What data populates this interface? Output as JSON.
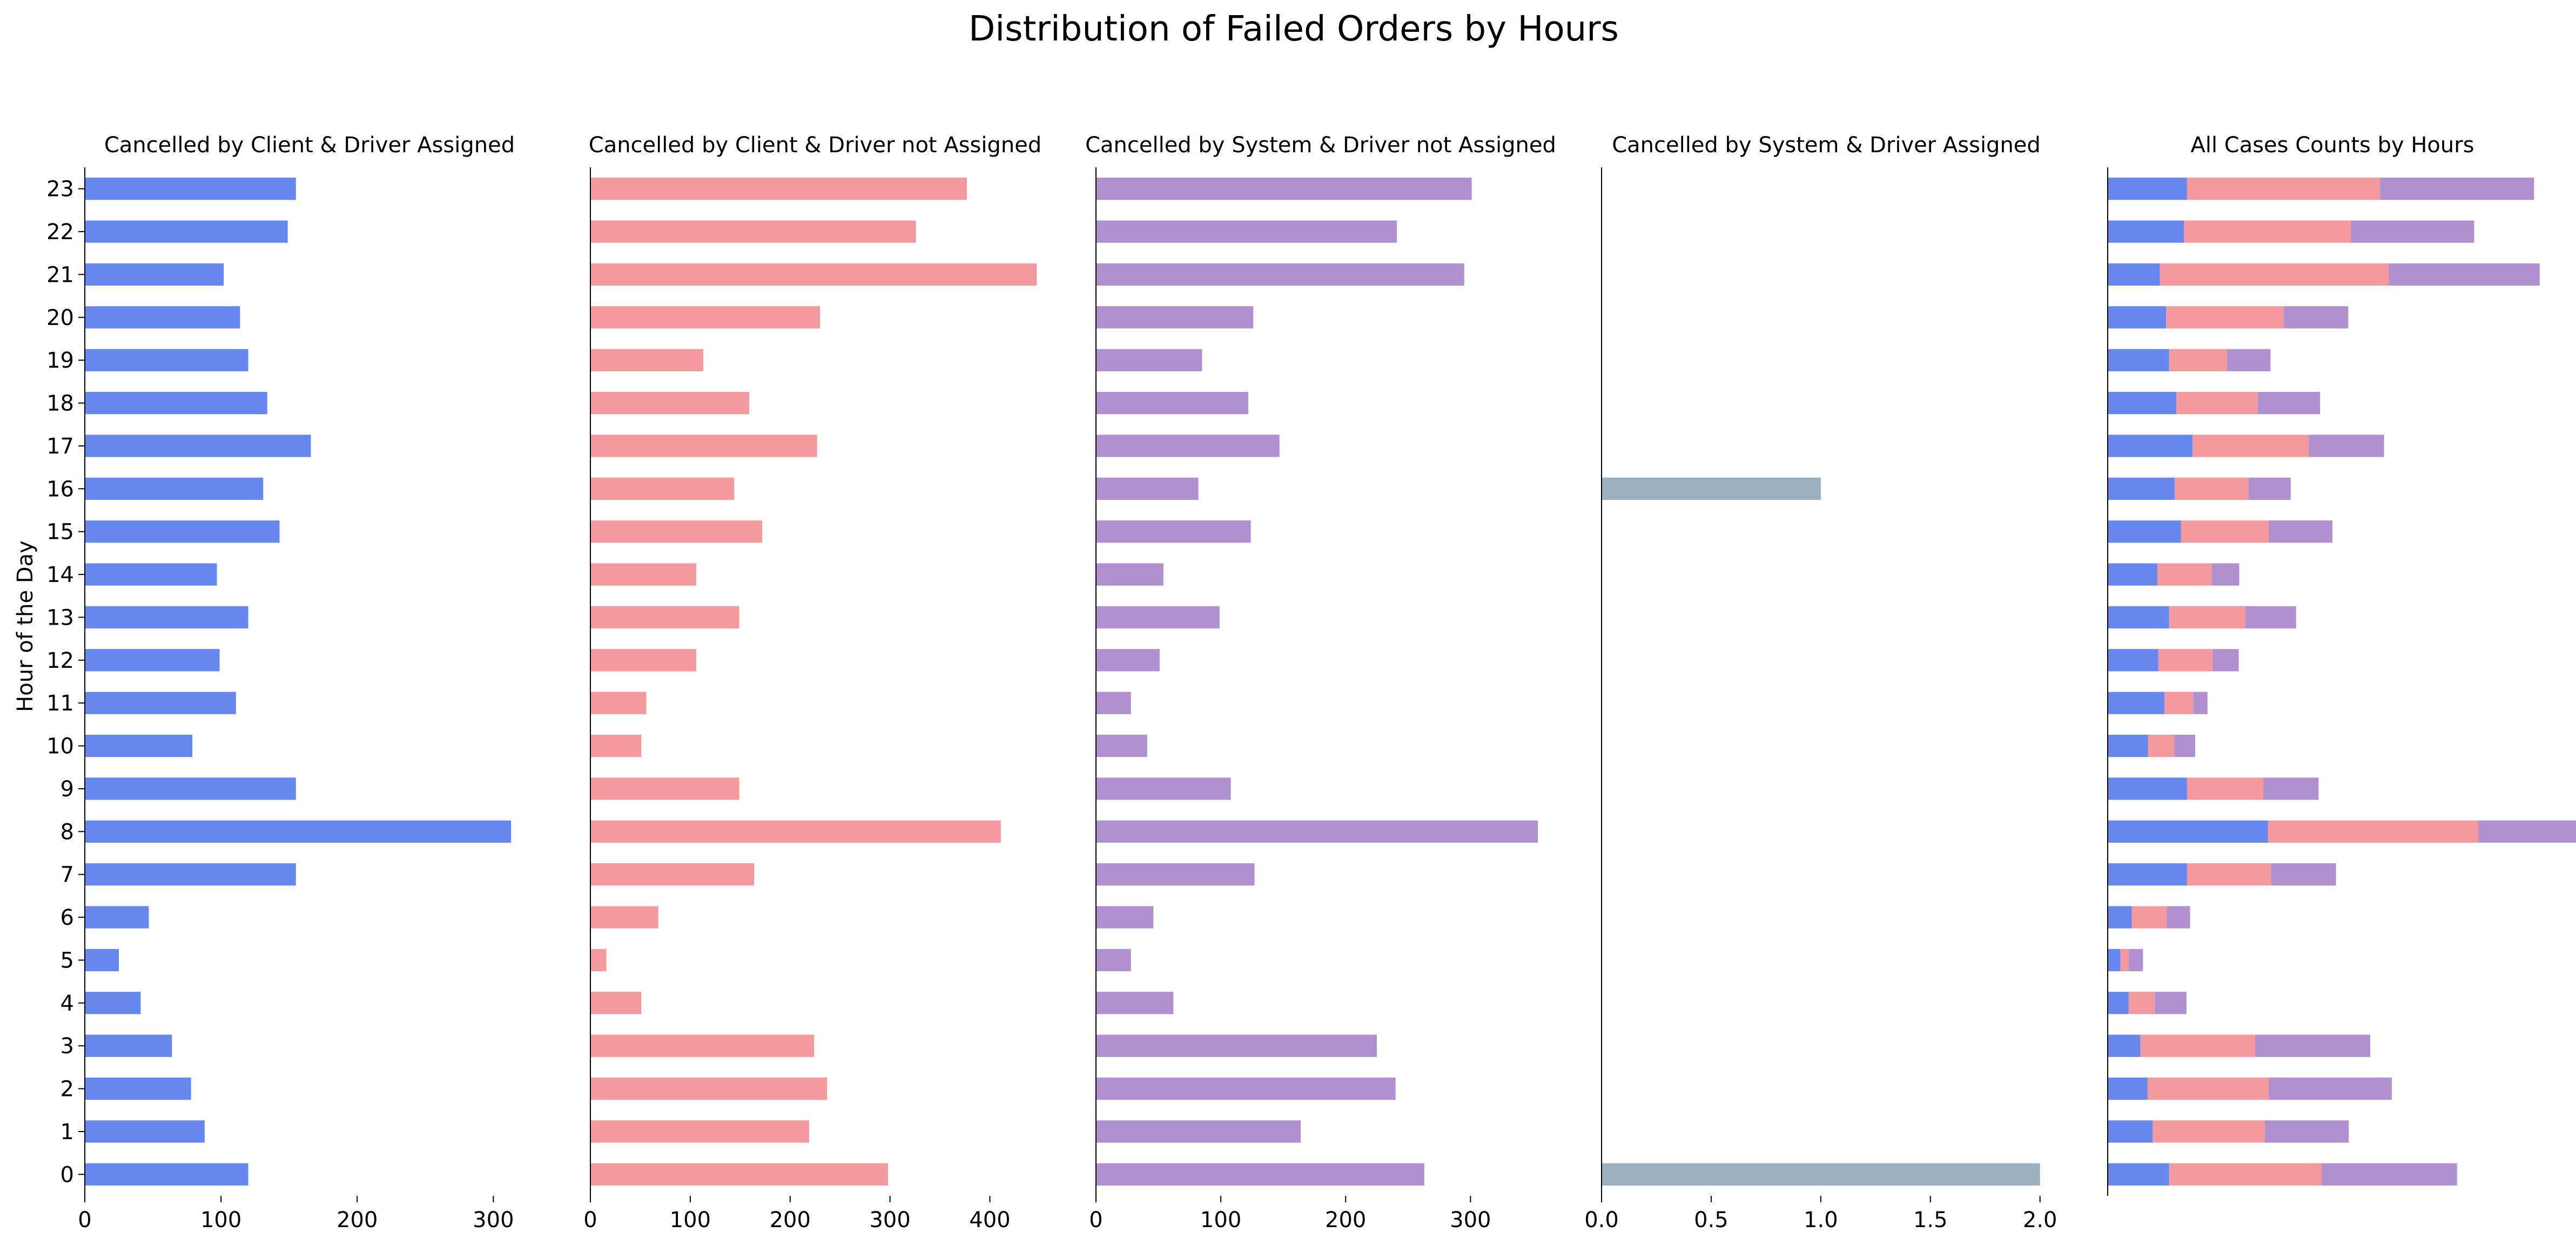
{
  "chart_data": {
    "type": "bar",
    "orientation": "horizontal",
    "title": "Distribution of Failed Orders by Hours",
    "ylabel": "Hour of the Day",
    "categories": [
      "0",
      "1",
      "2",
      "3",
      "4",
      "5",
      "6",
      "7",
      "8",
      "9",
      "10",
      "11",
      "12",
      "13",
      "14",
      "15",
      "16",
      "17",
      "18",
      "19",
      "20",
      "21",
      "22",
      "23"
    ],
    "panels": [
      {
        "title": "Cancelled by Client & Driver Assigned",
        "color": "#6688ee",
        "xlim": [
          0,
          330
        ],
        "xticks": [
          0,
          100,
          200,
          300
        ],
        "values": [
          120,
          88,
          78,
          64,
          41,
          25,
          47,
          155,
          313,
          155,
          79,
          111,
          99,
          120,
          97,
          143,
          131,
          166,
          134,
          120,
          114,
          102,
          149,
          155
        ]
      },
      {
        "title": "Cancelled by Client & Driver not Assigned",
        "color": "#f4999e",
        "xlim": [
          0,
          450
        ],
        "xticks": [
          0,
          100,
          200,
          300,
          400
        ],
        "values": [
          298,
          219,
          237,
          224,
          51,
          16,
          68,
          164,
          411,
          149,
          51,
          56,
          106,
          149,
          106,
          172,
          144,
          227,
          159,
          113,
          230,
          447,
          326,
          377
        ]
      },
      {
        "title": "Cancelled by System & Driver not Assigned",
        "color": "#b190d0",
        "xlim": [
          0,
          360
        ],
        "xticks": [
          0,
          100,
          200,
          300
        ],
        "values": [
          263,
          164,
          240,
          225,
          62,
          28,
          46,
          127,
          354,
          108,
          41,
          28,
          51,
          99,
          54,
          124,
          82,
          147,
          122,
          85,
          126,
          295,
          241,
          301
        ]
      },
      {
        "title": "Cancelled by System & Driver Assigned",
        "color": "#9aafc0",
        "xlim": [
          0,
          2.05
        ],
        "xticks": [
          0.0,
          0.5,
          1.0,
          1.5,
          2.0
        ],
        "tick_labels": [
          "0.0",
          "0.5",
          "1.0",
          "1.5",
          "2.0"
        ],
        "values": [
          2,
          0,
          0,
          0,
          0,
          0,
          0,
          0,
          0,
          0,
          0,
          0,
          0,
          0,
          0,
          0,
          1,
          0,
          0,
          0,
          0,
          0,
          0,
          0
        ]
      },
      {
        "title": "All Cases Counts by Hours",
        "stacked": true,
        "xlim": [
          0,
          878
        ],
        "xticks": [],
        "series_colors": [
          "#6688ee",
          "#f4999e",
          "#b190d0",
          "#9aafc0"
        ]
      }
    ],
    "grid": false,
    "legend": "none"
  }
}
